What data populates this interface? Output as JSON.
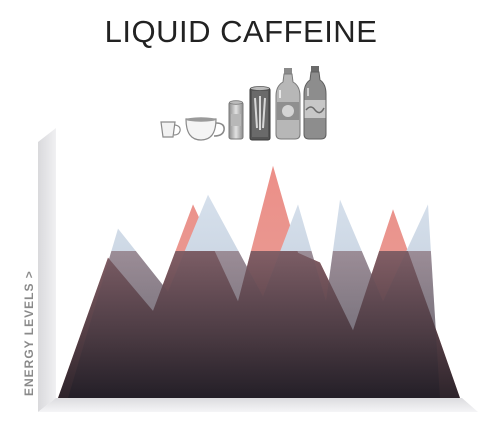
{
  "title": "LIQUID CAFFEINE",
  "colors": {
    "pink_peaks": "#e9948e",
    "blue_peaks": "#c8d4e2",
    "dark_base": "#2a2028",
    "box_wall": "#e6e6e8",
    "drinks": "#9a9a9a"
  },
  "icons": [
    "small-cup-icon",
    "coffee-mug-icon",
    "energy-drink-can-icon",
    "monster-can-icon",
    "soda-bottle-icon",
    "cola-bottle-icon"
  ],
  "chart_data": {
    "type": "area",
    "title": "LIQUID CAFFEINE",
    "xlabel": "",
    "ylabel": "ENERGY LEVELS >",
    "grid": false,
    "legend": "none",
    "ylim": [
      0,
      250
    ],
    "series": [
      {
        "color": "#e9948e",
        "x": [
          0,
          50,
          95,
          135,
          180,
          215,
          240,
          262,
          295,
          335,
          380,
          402
        ],
        "values": [
          0,
          145,
          90,
          200,
          100,
          240,
          150,
          140,
          70,
          195,
          65,
          0
        ]
      },
      {
        "color": "#c8d4e2",
        "x": [
          10,
          60,
          110,
          150,
          205,
          240,
          268,
          282,
          325,
          370,
          382
        ],
        "values": [
          0,
          175,
          110,
          210,
          105,
          200,
          100,
          205,
          100,
          200,
          0
        ]
      }
    ]
  }
}
